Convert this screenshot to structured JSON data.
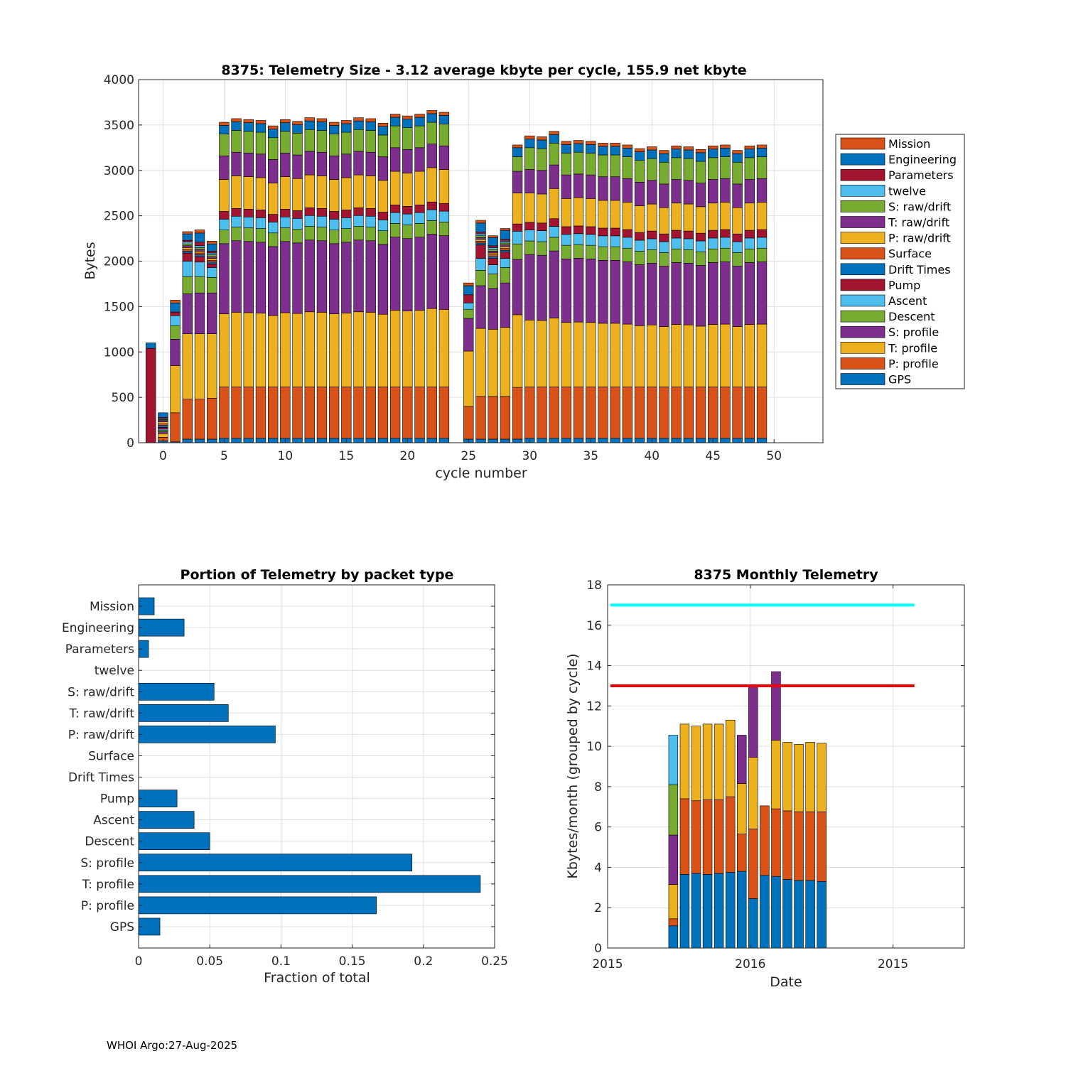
{
  "footer": "WHOI Argo:27-Aug-2025",
  "colors": {
    "GPS": "#0072BD",
    "P: profile": "#D95319",
    "T: profile": "#EDB120",
    "S: profile": "#7E2F8E",
    "Descent": "#77AC30",
    "Ascent": "#4DBEEE",
    "Pump": "#A2142F",
    "Drift Times": "#0072BD",
    "Surface": "#D95319",
    "P: raw/drift": "#EDB120",
    "T: raw/drift": "#7E2F8E",
    "S: raw/drift": "#77AC30",
    "twelve": "#4DBEEE",
    "Parameters": "#A2142F",
    "Engineering": "#0072BD",
    "Mission": "#D95319",
    "grid": "#dfdfdf",
    "axis": "#262626",
    "ref_high": "#00FFFF",
    "ref_low": "#EE0000"
  },
  "chart_data": [
    {
      "id": "telemetry-size",
      "type": "bar",
      "stacked": true,
      "title": "8375: Telemetry Size - 3.12 average kbyte per cycle,  155.9 net kbyte",
      "xlabel": "cycle number",
      "ylabel": "Bytes",
      "xlim": [
        -2,
        54
      ],
      "ylim": [
        0,
        4000
      ],
      "xticks": [
        0,
        5,
        10,
        15,
        20,
        25,
        30,
        35,
        40,
        45,
        50
      ],
      "yticks": [
        0,
        500,
        1000,
        1500,
        2000,
        2500,
        3000,
        3500,
        4000
      ],
      "legend_position": "outside-right",
      "legend": [
        "Mission",
        "Engineering",
        "Parameters",
        "twelve",
        "S: raw/drift",
        "T: raw/drift",
        "P: raw/drift",
        "Surface",
        "Drift Times",
        "Pump",
        "Ascent",
        "Descent",
        "S: profile",
        "T: profile",
        "P: profile",
        "GPS"
      ],
      "stack_order": [
        "GPS",
        "P: profile",
        "T: profile",
        "S: profile",
        "Descent",
        "Ascent",
        "Pump",
        "Drift Times",
        "Surface",
        "P: raw/drift",
        "T: raw/drift",
        "S: raw/drift",
        "twelve",
        "Parameters",
        "Engineering",
        "Mission"
      ],
      "typical_segments": {
        "GPS": 50,
        "P: profile": 565,
        "T: profile": 800,
        "S: profile": 770,
        "Descent": 150,
        "Ascent": 120,
        "Pump": 85,
        "Drift Times": 0,
        "Surface": 0,
        "P: raw/drift": 350,
        "T: raw/drift": 260,
        "S: raw/drift": 240,
        "twelve": 0,
        "Parameters": 0,
        "Engineering": 95,
        "Mission": 35
      },
      "special_cycles": [
        {
          "cycle": -1,
          "segments": {
            "Pump": 1040,
            "Engineering": 60
          }
        },
        {
          "cycle": 0,
          "segments": {
            "GPS": 20,
            "P: profile": 40,
            "T: profile": 40,
            "S: profile": 20,
            "Descent": 15,
            "Ascent": 15,
            "Pump": 20,
            "Drift Times": 20,
            "Surface": 20,
            "P: raw/drift": 20,
            "T: raw/drift": 15,
            "S: raw/drift": 10,
            "twelve": 10,
            "Parameters": 15,
            "Engineering": 50,
            "Mission": 0
          }
        },
        {
          "cycle": 1,
          "segments": {
            "GPS": 10,
            "P: profile": 320,
            "T: profile": 520,
            "S: profile": 290,
            "Descent": 150,
            "Ascent": 110,
            "Pump": 40,
            "Engineering": 100,
            "Mission": 30
          }
        },
        {
          "cycle": 2,
          "segments": {
            "GPS": 40,
            "P: profile": 440,
            "T: profile": 720,
            "S: profile": 440,
            "Descent": 190,
            "Ascent": 170,
            "Pump": 90,
            "Drift Times": 20,
            "Surface": 20,
            "P: raw/drift": 20,
            "T: raw/drift": 20,
            "S: raw/drift": 20,
            "twelve": 20,
            "Parameters": 20,
            "Engineering": 70,
            "Mission": 25
          }
        },
        {
          "cycle": 3,
          "segments": {
            "GPS": 40,
            "P: profile": 440,
            "T: profile": 720,
            "S: profile": 450,
            "Descent": 180,
            "Ascent": 160,
            "Pump": 60,
            "Drift Times": 20,
            "Surface": 20,
            "P: raw/drift": 20,
            "T: raw/drift": 20,
            "S: raw/drift": 20,
            "twelve": 20,
            "Parameters": 40,
            "Engineering": 100,
            "Mission": 35
          }
        },
        {
          "cycle": 4,
          "segments": {
            "GPS": 40,
            "P: profile": 450,
            "T: profile": 710,
            "S: profile": 450,
            "Descent": 170,
            "Ascent": 110,
            "Pump": 40,
            "Drift Times": 20,
            "Surface": 20,
            "P: raw/drift": 20,
            "T: raw/drift": 20,
            "S: raw/drift": 20,
            "twelve": 20,
            "Parameters": 20,
            "Engineering": 80,
            "Mission": 30
          }
        },
        {
          "cycle": 24,
          "segments": {}
        },
        {
          "cycle": 25,
          "segments": {
            "GPS": 40,
            "P: profile": 360,
            "T: profile": 610,
            "S: profile": 360,
            "Descent": 100,
            "Ascent": 70,
            "Pump": 90,
            "Engineering": 100,
            "Mission": 30
          }
        },
        {
          "cycle": 26,
          "segments": {
            "GPS": 40,
            "P: profile": 470,
            "T: profile": 750,
            "S: profile": 470,
            "Descent": 170,
            "Ascent": 130,
            "Pump": 150,
            "Drift Times": 20,
            "Surface": 20,
            "P: raw/drift": 20,
            "T: raw/drift": 20,
            "S: raw/drift": 20,
            "twelve": 20,
            "Parameters": 20,
            "Engineering": 100,
            "Mission": 30
          }
        },
        {
          "cycle": 27,
          "segments": {
            "GPS": 40,
            "P: profile": 470,
            "T: profile": 740,
            "S: profile": 450,
            "Descent": 160,
            "Ascent": 100,
            "Pump": 70,
            "Drift Times": 20,
            "Surface": 20,
            "P: raw/drift": 20,
            "T: raw/drift": 20,
            "S: raw/drift": 20,
            "twelve": 20,
            "Parameters": 20,
            "Engineering": 90,
            "Mission": 20
          }
        },
        {
          "cycle": 28,
          "segments": {
            "GPS": 40,
            "P: profile": 470,
            "T: profile": 760,
            "S: profile": 490,
            "Descent": 170,
            "Ascent": 100,
            "Pump": 70,
            "Drift Times": 20,
            "Surface": 20,
            "P: raw/drift": 20,
            "T: raw/drift": 20,
            "S: raw/drift": 20,
            "twelve": 20,
            "Parameters": 20,
            "Engineering": 100,
            "Mission": 20
          }
        },
        {
          "cycle": 29,
          "segments": {
            "GPS": 40,
            "P: profile": 570,
            "T: profile": 800,
            "S: profile": 610,
            "Descent": 170,
            "Ascent": 140,
            "Pump": 80,
            "P: raw/drift": 340,
            "T: raw/drift": 240,
            "S: raw/drift": 160,
            "Engineering": 100,
            "Mission": 30
          }
        }
      ],
      "totals": [
        {
          "cycle": -1,
          "value": 1100
        },
        {
          "cycle": 0,
          "value": 330
        },
        {
          "cycle": 1,
          "value": 1580
        },
        {
          "cycle": 2,
          "value": 2340
        },
        {
          "cycle": 3,
          "value": 2390
        },
        {
          "cycle": 4,
          "value": 2355
        },
        {
          "cycle": 5,
          "value": 3530
        },
        {
          "cycle": 6,
          "value": 3570
        },
        {
          "cycle": 7,
          "value": 3560
        },
        {
          "cycle": 8,
          "value": 3550
        },
        {
          "cycle": 9,
          "value": 3490
        },
        {
          "cycle": 10,
          "value": 3560
        },
        {
          "cycle": 11,
          "value": 3540
        },
        {
          "cycle": 12,
          "value": 3580
        },
        {
          "cycle": 13,
          "value": 3570
        },
        {
          "cycle": 14,
          "value": 3530
        },
        {
          "cycle": 15,
          "value": 3550
        },
        {
          "cycle": 16,
          "value": 3580
        },
        {
          "cycle": 17,
          "value": 3570
        },
        {
          "cycle": 18,
          "value": 3520
        },
        {
          "cycle": 19,
          "value": 3620
        },
        {
          "cycle": 20,
          "value": 3600
        },
        {
          "cycle": 21,
          "value": 3620
        },
        {
          "cycle": 22,
          "value": 3660
        },
        {
          "cycle": 23,
          "value": 3640
        },
        {
          "cycle": 24,
          "value": 0
        },
        {
          "cycle": 25,
          "value": 1760
        },
        {
          "cycle": 26,
          "value": 2400
        },
        {
          "cycle": 27,
          "value": 2340
        },
        {
          "cycle": 28,
          "value": 2370
        },
        {
          "cycle": 29,
          "value": 3340
        },
        {
          "cycle": 30,
          "value": 3380
        },
        {
          "cycle": 31,
          "value": 3370
        },
        {
          "cycle": 32,
          "value": 3430
        },
        {
          "cycle": 33,
          "value": 3320
        },
        {
          "cycle": 34,
          "value": 3330
        },
        {
          "cycle": 35,
          "value": 3320
        },
        {
          "cycle": 36,
          "value": 3300
        },
        {
          "cycle": 37,
          "value": 3300
        },
        {
          "cycle": 38,
          "value": 3280
        },
        {
          "cycle": 39,
          "value": 3240
        },
        {
          "cycle": 40,
          "value": 3260
        },
        {
          "cycle": 41,
          "value": 3220
        },
        {
          "cycle": 42,
          "value": 3270
        },
        {
          "cycle": 43,
          "value": 3260
        },
        {
          "cycle": 44,
          "value": 3230
        },
        {
          "cycle": 45,
          "value": 3270
        },
        {
          "cycle": 46,
          "value": 3280
        },
        {
          "cycle": 47,
          "value": 3220
        },
        {
          "cycle": 48,
          "value": 3270
        },
        {
          "cycle": 49,
          "value": 3280
        }
      ]
    },
    {
      "id": "portion-by-type",
      "type": "bar",
      "orientation": "horizontal",
      "title": "Portion of Telemetry by packet type",
      "xlabel": "Fraction of total",
      "xlim": [
        0,
        0.25
      ],
      "xticks": [
        0,
        0.05,
        0.1,
        0.15,
        0.2,
        0.25
      ],
      "xtick_labels": [
        "0",
        "0.05",
        "0.1",
        "0.15",
        "0.2",
        "0.25"
      ],
      "categories": [
        "Mission",
        "Engineering",
        "Parameters",
        "twelve",
        "S: raw/drift",
        "T: raw/drift",
        "P: raw/drift",
        "Surface",
        "Drift Times",
        "Pump",
        "Ascent",
        "Descent",
        "S: profile",
        "T: profile",
        "P: profile",
        "GPS"
      ],
      "values": [
        0.011,
        0.032,
        0.007,
        0,
        0.053,
        0.063,
        0.096,
        0,
        0,
        0.027,
        0.039,
        0.05,
        0.192,
        0.24,
        0.167,
        0.015
      ]
    },
    {
      "id": "monthly-telemetry",
      "type": "bar",
      "stacked": true,
      "title": "8375 Monthly Telemetry",
      "xlabel": "Date",
      "ylabel": "Kbytes/month (grouped by cycle)",
      "xlim": [
        0,
        25
      ],
      "ylim": [
        0,
        18
      ],
      "yticks": [
        0,
        2,
        4,
        6,
        8,
        10,
        12,
        14,
        16,
        18
      ],
      "xticks": [
        0,
        10,
        20
      ],
      "xtick_labels": [
        "2015",
        "2016",
        "2015"
      ],
      "reference_lines": [
        {
          "value": 17,
          "from": 0.2,
          "to": 21.5,
          "color": "#00FFFF"
        },
        {
          "value": 13,
          "from": 0.2,
          "to": 21.5,
          "color": "#EE0000"
        }
      ],
      "months": [
        {
          "x": 4.6,
          "segments": [
            1.1,
            0.35,
            1.7,
            2.45,
            2.5,
            2.45
          ]
        },
        {
          "x": 5.4,
          "segments": [
            3.65,
            3.75,
            3.7
          ]
        },
        {
          "x": 6.2,
          "segments": [
            3.7,
            3.6,
            3.7
          ]
        },
        {
          "x": 7.0,
          "segments": [
            3.65,
            3.7,
            3.75
          ]
        },
        {
          "x": 7.8,
          "segments": [
            3.7,
            3.65,
            3.75
          ]
        },
        {
          "x": 8.6,
          "segments": [
            3.75,
            3.75,
            3.8
          ]
        },
        {
          "x": 9.4,
          "segments": [
            3.8,
            1.85,
            2.5,
            2.4
          ]
        },
        {
          "x": 10.2,
          "segments": [
            2.45,
            3.45,
            3.55,
            3.55
          ]
        },
        {
          "x": 11.0,
          "segments": [
            3.6,
            3.45
          ]
        },
        {
          "x": 11.8,
          "segments": [
            3.55,
            3.35,
            3.4,
            3.4
          ]
        },
        {
          "x": 12.6,
          "segments": [
            3.4,
            3.4,
            3.4
          ]
        },
        {
          "x": 13.4,
          "segments": [
            3.35,
            3.4,
            3.35
          ]
        },
        {
          "x": 14.2,
          "segments": [
            3.35,
            3.4,
            3.45
          ]
        },
        {
          "x": 15.0,
          "segments": [
            3.3,
            3.45,
            3.4
          ]
        }
      ]
    }
  ]
}
